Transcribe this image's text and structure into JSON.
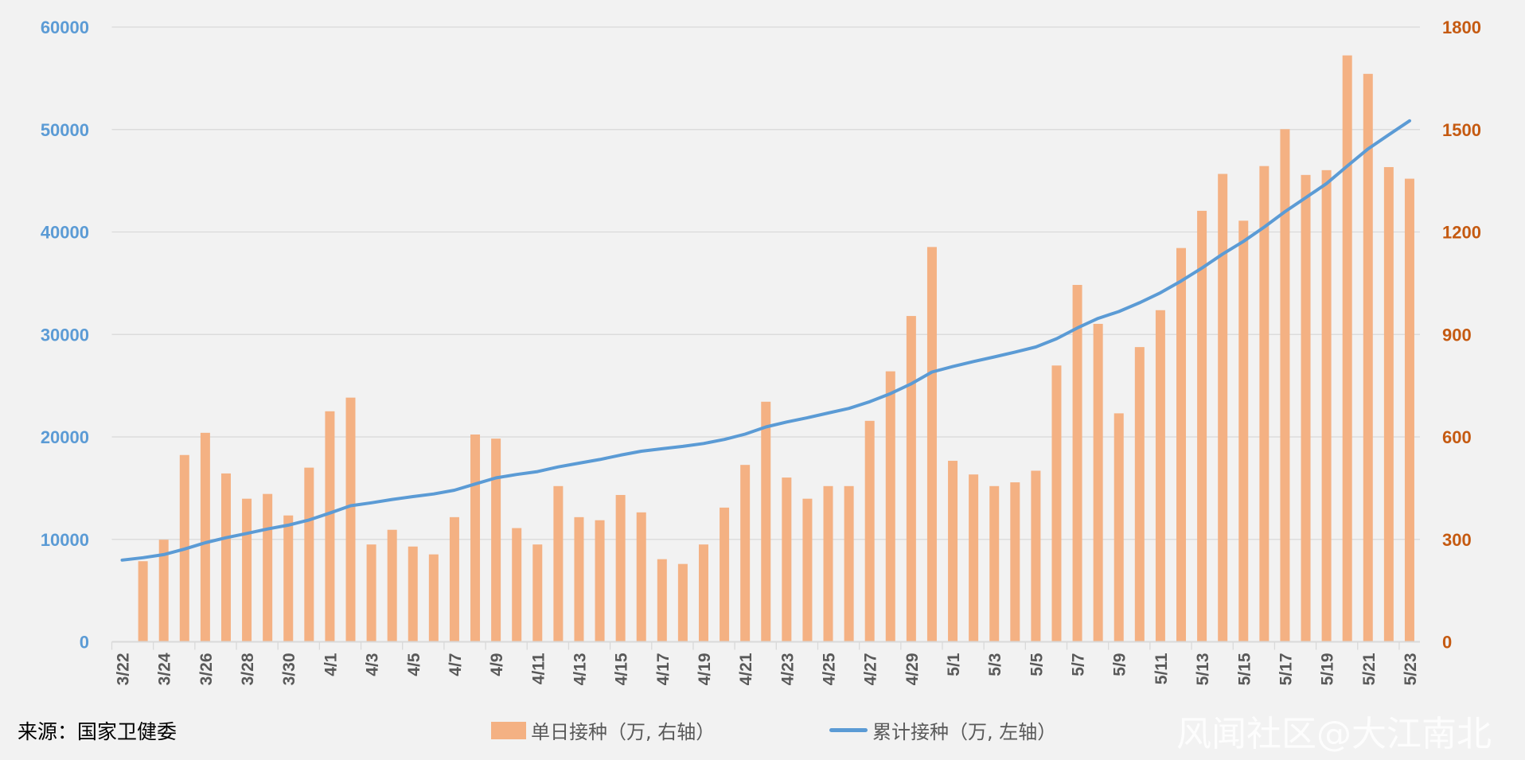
{
  "chart_data": {
    "type": "bar+line",
    "title": "",
    "categories": [
      "3/22",
      "3/23",
      "3/24",
      "3/25",
      "3/26",
      "3/27",
      "3/28",
      "3/29",
      "3/30",
      "3/31",
      "4/1",
      "4/2",
      "4/3",
      "4/4",
      "4/5",
      "4/6",
      "4/7",
      "4/8",
      "4/9",
      "4/10",
      "4/11",
      "4/12",
      "4/13",
      "4/14",
      "4/15",
      "4/16",
      "4/17",
      "4/18",
      "4/19",
      "4/20",
      "4/21",
      "4/22",
      "4/23",
      "4/24",
      "4/25",
      "4/26",
      "4/27",
      "4/28",
      "4/29",
      "4/30",
      "5/1",
      "5/2",
      "5/3",
      "5/4",
      "5/5",
      "5/6",
      "5/7",
      "5/8",
      "5/9",
      "5/10",
      "5/11",
      "5/12",
      "5/13",
      "5/14",
      "5/15",
      "5/16",
      "5/17",
      "5/18",
      "5/19",
      "5/20",
      "5/21",
      "5/22",
      "5/23"
    ],
    "series": [
      {
        "name": "单日接种（万, 右轴）",
        "type": "bar",
        "axis": "right",
        "color": "#f4b183",
        "values": [
          null,
          236,
          299,
          547,
          612,
          493,
          419,
          433,
          370,
          510,
          675,
          715,
          285,
          328,
          279,
          256,
          365,
          607,
          595,
          333,
          285,
          456,
          365,
          356,
          430,
          379,
          242,
          228,
          285,
          393,
          518,
          703,
          481,
          419,
          456,
          456,
          647,
          792,
          954,
          1156,
          530,
          490,
          456,
          467,
          501,
          809,
          1045,
          931,
          669,
          863,
          971,
          1153,
          1262,
          1370,
          1233,
          1393,
          1501,
          1367,
          1381,
          1717,
          1663,
          1390,
          1356
        ]
      },
      {
        "name": "累计接种（万, 左轴）",
        "type": "line",
        "axis": "left",
        "color": "#5b9bd5",
        "values": [
          7975,
          8211,
          8510,
          9057,
          9669,
          10162,
          10581,
          11014,
          11384,
          11894,
          12569,
          13284,
          13569,
          13897,
          14176,
          14432,
          14797,
          15404,
          15999,
          16332,
          16617,
          17073,
          17438,
          17794,
          18224,
          18603,
          18845,
          19073,
          19358,
          19751,
          20269,
          20972,
          21453,
          21872,
          22328,
          22784,
          23431,
          24223,
          25177,
          26333,
          26863,
          27353,
          27809,
          28276,
          28777,
          29586,
          30631,
          31562,
          32231,
          33094,
          34065,
          35218,
          36480,
          37850,
          39083,
          40476,
          41977,
          43344,
          44725,
          46442,
          48105,
          49495,
          50851
        ]
      }
    ],
    "left_axis": {
      "range": [
        0,
        60000
      ],
      "ticks": [
        "0",
        "10000",
        "20000",
        "30000",
        "40000",
        "50000",
        "60000"
      ],
      "color": "#5b9bd5"
    },
    "right_axis": {
      "range": [
        0,
        1800
      ],
      "ticks": [
        "0",
        "300",
        "600",
        "900",
        "1200",
        "1500",
        "1800"
      ],
      "color": "#c55a11"
    },
    "x_tick_labels": [
      "3/22",
      "3/24",
      "3/26",
      "3/28",
      "3/30",
      "4/1",
      "4/3",
      "4/5",
      "4/7",
      "4/9",
      "4/11",
      "4/13",
      "4/15",
      "4/17",
      "4/19",
      "4/21",
      "4/23",
      "4/25",
      "4/27",
      "4/29",
      "5/1",
      "5/3",
      "5/5",
      "5/7",
      "5/9",
      "5/11",
      "5/13",
      "5/15",
      "5/17",
      "5/19",
      "5/21",
      "5/23"
    ],
    "grid": true,
    "legend_position": "bottom"
  },
  "legend": {
    "bar_label": "单日接种（万, 右轴）",
    "line_label": "累计接种（万, 左轴）"
  },
  "source": "来源：国家卫健委",
  "watermark": "风闻社区@大江南北"
}
